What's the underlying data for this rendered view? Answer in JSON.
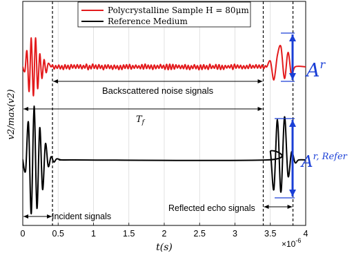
{
  "chart_data": {
    "type": "line",
    "xlabel": "t(s)",
    "ylabel": "v2/max(v2)",
    "x_multiplier_label": "×10",
    "x_multiplier_exponent": "-6",
    "xlim": [
      0,
      4
    ],
    "x_ticks": [
      0,
      0.5,
      1,
      1.5,
      2,
      2.5,
      3,
      3.5,
      4
    ],
    "x_tick_labels": [
      "0",
      "0.5",
      "1",
      "1.5",
      "2",
      "2.5",
      "3",
      "3.5",
      "4"
    ],
    "grid": "vertical",
    "legend_position": "top",
    "series": [
      {
        "name": "Polycrystalline Sample H = 80μm",
        "color": "#e31a1c",
        "segments": [
          {
            "t": [
              0.0,
              0.03,
              0.06,
              0.09,
              0.12,
              0.15,
              0.18,
              0.21,
              0.24,
              0.27,
              0.3,
              0.33,
              0.36,
              0.4
            ],
            "v": [
              0.0,
              -0.15,
              0.55,
              -0.85,
              1.0,
              -1.0,
              1.0,
              -0.75,
              0.45,
              -0.4,
              0.25,
              -0.2,
              0.12,
              0.0
            ]
          },
          {
            "t": [
              3.45,
              3.5,
              3.55,
              3.6,
              3.65,
              3.7,
              3.75,
              3.8,
              3.85
            ],
            "v": [
              0.0,
              0.2,
              -0.45,
              0.4,
              0.7,
              -0.4,
              0.5,
              -0.3,
              0.0
            ]
          }
        ],
        "noise_window": [
          0.4,
          3.45
        ],
        "noise_amplitude": 0.1
      },
      {
        "name": "Reference Medium",
        "color": "#000000",
        "segments": [
          {
            "t": [
              0.0,
              0.04,
              0.08,
              0.12,
              0.16,
              0.2,
              0.24,
              0.28,
              0.32,
              0.36,
              0.4,
              0.44,
              0.48,
              0.55,
              0.7
            ],
            "v": [
              0.0,
              -0.2,
              0.7,
              -1.0,
              1.0,
              -0.9,
              0.6,
              -0.55,
              0.3,
              -0.12,
              0.06,
              -0.04,
              0.02,
              0.0,
              0.0
            ]
          },
          {
            "t": [
              3.45,
              3.5,
              3.55,
              3.6,
              3.65,
              3.7,
              3.75,
              3.8,
              3.85,
              3.9,
              4.0
            ],
            "v": [
              0.0,
              0.15,
              -0.55,
              0.75,
              -0.6,
              0.8,
              -0.3,
              0.15,
              -0.05,
              0.0,
              0.0
            ]
          }
        ]
      }
    ],
    "vlines": [
      0.42,
      3.4,
      3.82
    ],
    "annotations": [
      {
        "text": "Backscattered noise signals",
        "kind": "double-arrow",
        "from": 0.42,
        "to": 3.4
      },
      {
        "text": "T",
        "subscript": "f",
        "kind": "double-arrow",
        "from": 0.0,
        "to": 3.4
      },
      {
        "text": "Incident signals",
        "kind": "double-arrow",
        "from": 0.0,
        "to": 0.42
      },
      {
        "text": "Reflected echo signals",
        "kind": "double-arrow",
        "from": 3.4,
        "to": 3.82
      },
      {
        "text": "A",
        "superscript": "r",
        "kind": "amplitude-arrow",
        "color": "#1a3fd6"
      },
      {
        "text": "A",
        "superscript": "r, Refer",
        "kind": "amplitude-arrow",
        "color": "#1a3fd6"
      }
    ]
  }
}
